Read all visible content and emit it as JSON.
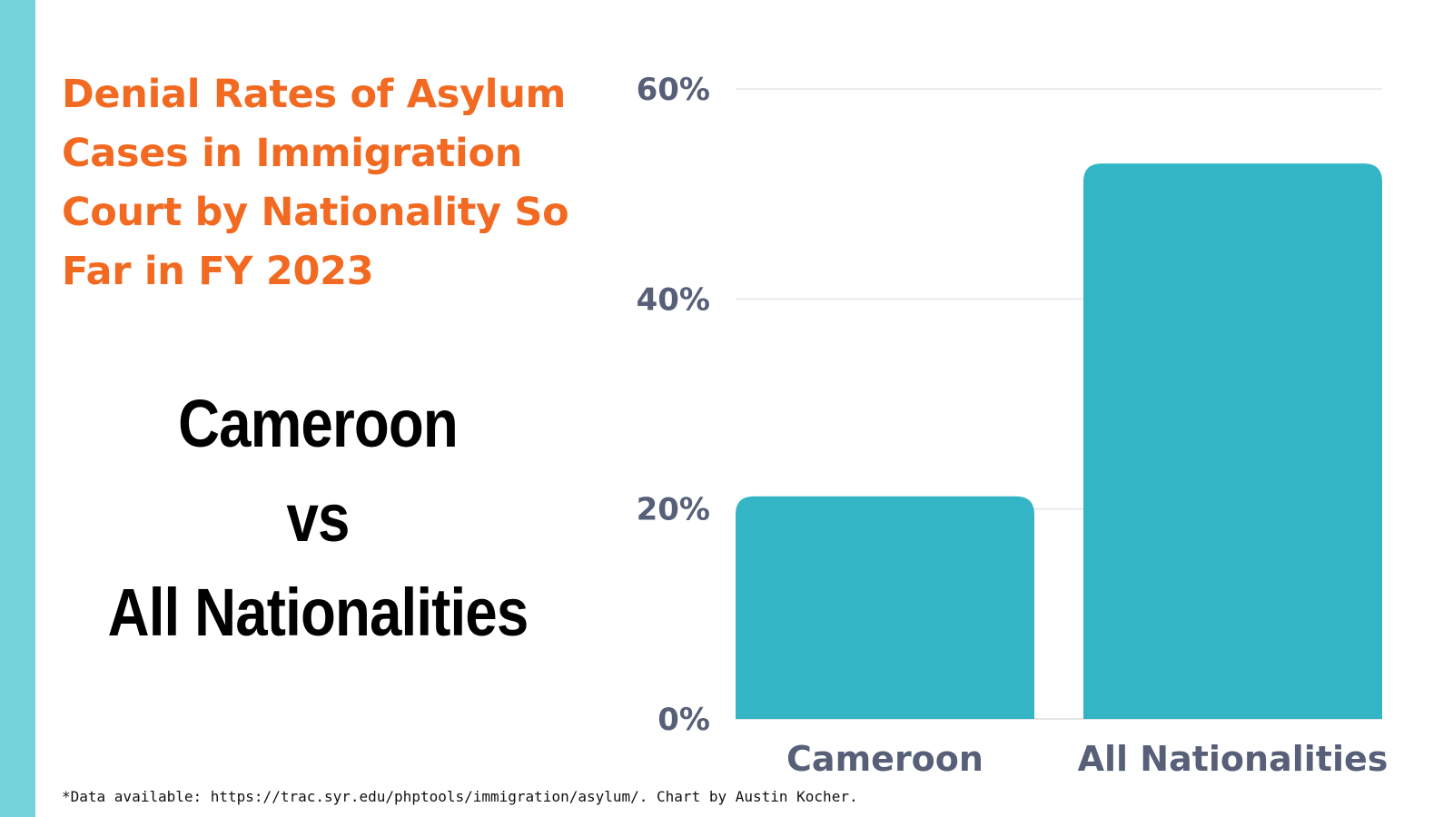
{
  "colors": {
    "stripe": "#75d3dc",
    "title": "#f26a22",
    "bar": "#33b5c5",
    "axis_text": "#576078",
    "gridline": "#e6e6e6"
  },
  "comparison": {
    "line1": "Cameroon",
    "line2": "vs",
    "line3": "All Nationalities"
  },
  "footnote": "*Data available: https://trac.syr.edu/phptools/immigration/asylum/. Chart by Austin Kocher.",
  "chart_data": {
    "type": "bar",
    "title": "Denial Rates of Asylum Cases in Immigration Court by Nationality So Far in FY 2023",
    "categories": [
      "Cameroon",
      "All Nationalities"
    ],
    "values": [
      21.2,
      52.9
    ],
    "unit": "%",
    "ylim": [
      0,
      60
    ],
    "yticks": [
      0,
      20,
      40,
      60
    ],
    "ytick_labels": [
      "0%",
      "20%",
      "40%",
      "60%"
    ],
    "xlabel": "",
    "ylabel": "",
    "grid": true,
    "legend": "none"
  }
}
